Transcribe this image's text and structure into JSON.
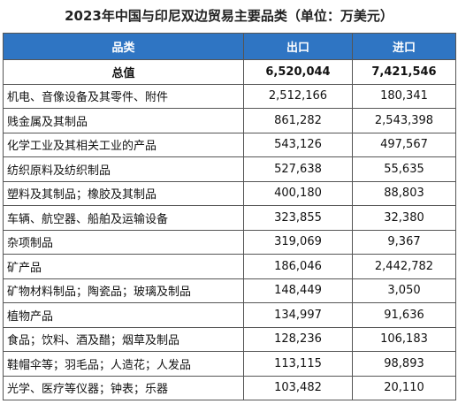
{
  "title": "2023年中国与印尼双边贸易主要品类（单位：万美元）",
  "table": {
    "header": [
      "品类",
      "出口",
      "进口"
    ],
    "rows": [
      [
        "总值",
        "6,520,044",
        "7,421,546"
      ],
      [
        "机电、音像设备及其零件、附件",
        "2,512,166",
        "180,341"
      ],
      [
        "贱金属及其制品",
        "861,282",
        "2,543,398"
      ],
      [
        "化学工业及其相关工业的产品",
        "543,126",
        "497,567"
      ],
      [
        "纺织原料及纺织制品",
        "527,638",
        "55,635"
      ],
      [
        "塑料及其制品；橡胶及其制品",
        "400,180",
        "88,803"
      ],
      [
        "车辆、航空器、船舶及运输设备",
        "323,855",
        "32,380"
      ],
      [
        "杂项制品",
        "319,069",
        "9,367"
      ],
      [
        "矿产品",
        "186,046",
        "2,442,782"
      ],
      [
        "矿物材料制品；陶瓷品；玻璃及制品",
        "148,449",
        "3,050"
      ],
      [
        "植物产品",
        "134,997",
        "91,636"
      ],
      [
        "食品；饮料、酒及醋；烟草及制品",
        "128,236",
        "106,183"
      ],
      [
        "鞋帽伞等；羽毛品；人造花；人发品",
        "113,115",
        "98,893"
      ],
      [
        "光学、医疗等仪器；钟表；乐器",
        "103,482",
        "20,110"
      ]
    ]
  }
}
